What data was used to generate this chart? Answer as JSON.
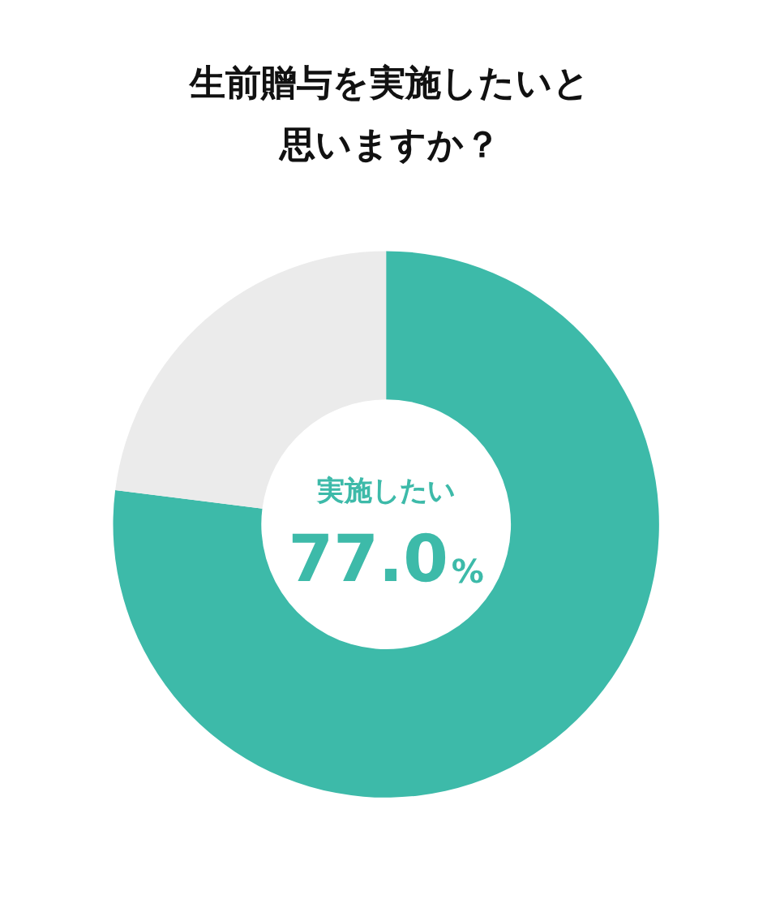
{
  "chart_data": {
    "type": "donut",
    "title": "生前贈与を実施したいと思いますか？",
    "categories": [
      "実施したい",
      null
    ],
    "values": [
      77.0,
      23.0
    ],
    "colors": [
      "#3dbaa9",
      "#ebebeb"
    ],
    "value_labels": [
      "77.0%",
      null
    ],
    "legend": false
  }
}
